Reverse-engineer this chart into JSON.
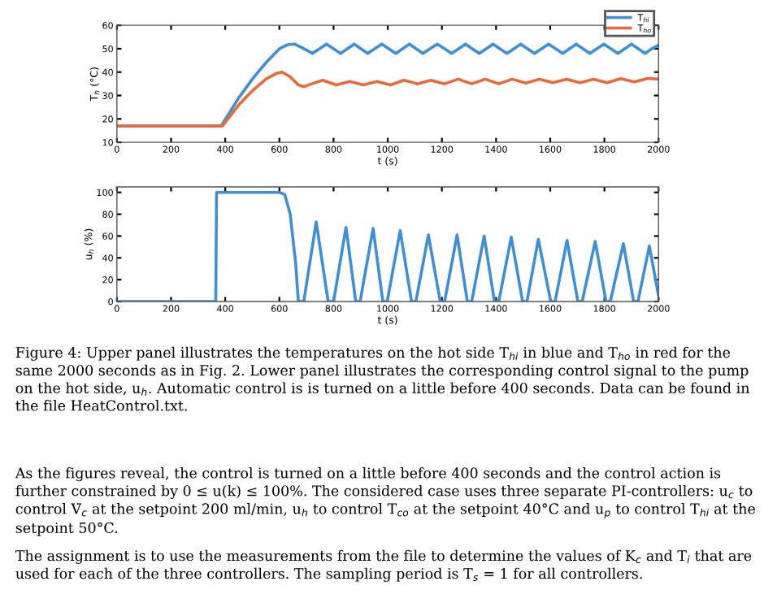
{
  "chart_data": [
    {
      "type": "line",
      "xlabel": "t (s)",
      "ylabel": "T$_{h}$ (°C)",
      "xlim": [
        0,
        2000
      ],
      "ylim": [
        10,
        60
      ],
      "xticks": [
        0,
        200,
        400,
        600,
        800,
        1000,
        1200,
        1400,
        1600,
        1800,
        2000
      ],
      "yticks": [
        10,
        20,
        30,
        40,
        50,
        60
      ],
      "grid": false,
      "legend": "top right",
      "marker": "none",
      "line_style": "solid",
      "series": [
        {
          "name": "T$_{hi}$",
          "color": "#3d8fd6",
          "x": [
            0,
            385,
            450,
            500,
            550,
            600,
            630,
            656,
            690,
            722,
            748,
            774,
            800,
            826,
            851,
            876,
            901,
            926,
            952,
            978,
            1004,
            1030,
            1055,
            1080,
            1105,
            1130,
            1156,
            1183,
            1210,
            1236,
            1262,
            1287,
            1312,
            1338,
            1364,
            1389,
            1414,
            1440,
            1466,
            1491,
            1516,
            1542,
            1568,
            1594,
            1620,
            1646,
            1671,
            1696,
            1721,
            1746,
            1772,
            1798,
            1824,
            1850,
            1875,
            1900,
            1925,
            1950,
            1975,
            2000
          ],
          "values": [
            17,
            17,
            29,
            37,
            44,
            50,
            51.7,
            52,
            50,
            48,
            50,
            52,
            50,
            48,
            50,
            52,
            50,
            48,
            50,
            52,
            50,
            48,
            50,
            52,
            50,
            48,
            50,
            52,
            50,
            48,
            50,
            52,
            50,
            48,
            50,
            52,
            50,
            48,
            50,
            52,
            50,
            48,
            50,
            52,
            50,
            48,
            50,
            52,
            50,
            48,
            50,
            52,
            50,
            48,
            50,
            52,
            50,
            48,
            50,
            51.5
          ]
        },
        {
          "name": "T$_{ho}$",
          "color": "#e8693a",
          "x": [
            0,
            390,
            450,
            500,
            550,
            590,
            610,
            640,
            670,
            690,
            720,
            760,
            810,
            860,
            910,
            960,
            1010,
            1060,
            1110,
            1160,
            1210,
            1260,
            1310,
            1360,
            1410,
            1460,
            1510,
            1560,
            1610,
            1660,
            1710,
            1760,
            1810,
            1860,
            1910,
            1960,
            2000
          ],
          "values": [
            17,
            17,
            26,
            32,
            37,
            39.5,
            40,
            38,
            34.5,
            33.8,
            35,
            36.5,
            34.5,
            36,
            34.5,
            36,
            34.5,
            36.5,
            35,
            36.5,
            35,
            37,
            35,
            37,
            35,
            37,
            35.3,
            37,
            35.5,
            37,
            35.5,
            37,
            35.5,
            37.2,
            35.8,
            37.3,
            37
          ]
        }
      ]
    },
    {
      "type": "line",
      "xlabel": "t (s)",
      "ylabel": "u$_{h}$ (%)",
      "xlim": [
        0,
        2000
      ],
      "ylim": [
        0,
        105
      ],
      "xticks": [
        0,
        200,
        400,
        600,
        800,
        1000,
        1200,
        1400,
        1600,
        1800,
        2000
      ],
      "yticks": [
        0,
        20,
        40,
        60,
        80,
        100
      ],
      "grid": false,
      "legend": false,
      "marker": "none",
      "line_style": "solid",
      "series": [
        {
          "color": "#3d8fd6",
          "x": [
            0,
            365,
            368,
            600,
            620,
            640,
            660,
            670,
            690,
            736,
            780,
            800,
            846,
            882,
            898,
            946,
            982,
            998,
            1046,
            1088,
            1104,
            1150,
            1194,
            1210,
            1256,
            1294,
            1310,
            1356,
            1394,
            1410,
            1456,
            1498,
            1514,
            1556,
            1602,
            1618,
            1662,
            1702,
            1718,
            1766,
            1806,
            1822,
            1870,
            1908,
            1924,
            1966,
            2000
          ],
          "values": [
            0,
            0,
            100,
            100,
            98,
            80,
            35,
            0,
            0,
            73,
            0,
            0,
            68,
            0,
            0,
            67,
            0,
            0,
            65,
            0,
            0,
            61,
            0,
            0,
            61,
            0,
            0,
            60,
            0,
            0,
            59,
            0,
            0,
            57,
            0,
            0,
            56,
            0,
            0,
            55,
            0,
            0,
            53,
            0,
            0,
            51,
            5
          ]
        }
      ],
      "annotations": [
        "Figure 4: Upper panel illustrates the temperatures on the hot side T$_{hi}$ in blue and T$_{ho}$ in red for the same 2000 seconds as in Fig. 2. Lower panel illustrates the corresponding control signal to the pump on the hot side, u$_{h}$. Automatic control is is turned on a little before 400 seconds. Data can be found in the file HeatControl.txt.",
        "As the figures reveal, the control is turned on a little before 400 seconds and the control action is further constrained by 0 ≤ u(k) ≤ 100%. The considered case uses three separate PI-controllers: u$_{c}$ to control V̇$_{c}$ at the setpoint 200 ml/min, u$_{h}$ to control T$_{co}$ at the setpoint 40°C and u$_{p}$ to control T$_{hi}$ at the setpoint 50°C.",
        "The assignment is to use the measurements from the file to determine the values of K$_{c}$ and T$_{i}$ that are used for each of the three controllers. The sampling period is T$_{s}$ = 1 for all controllers."
      ]
    }
  ]
}
